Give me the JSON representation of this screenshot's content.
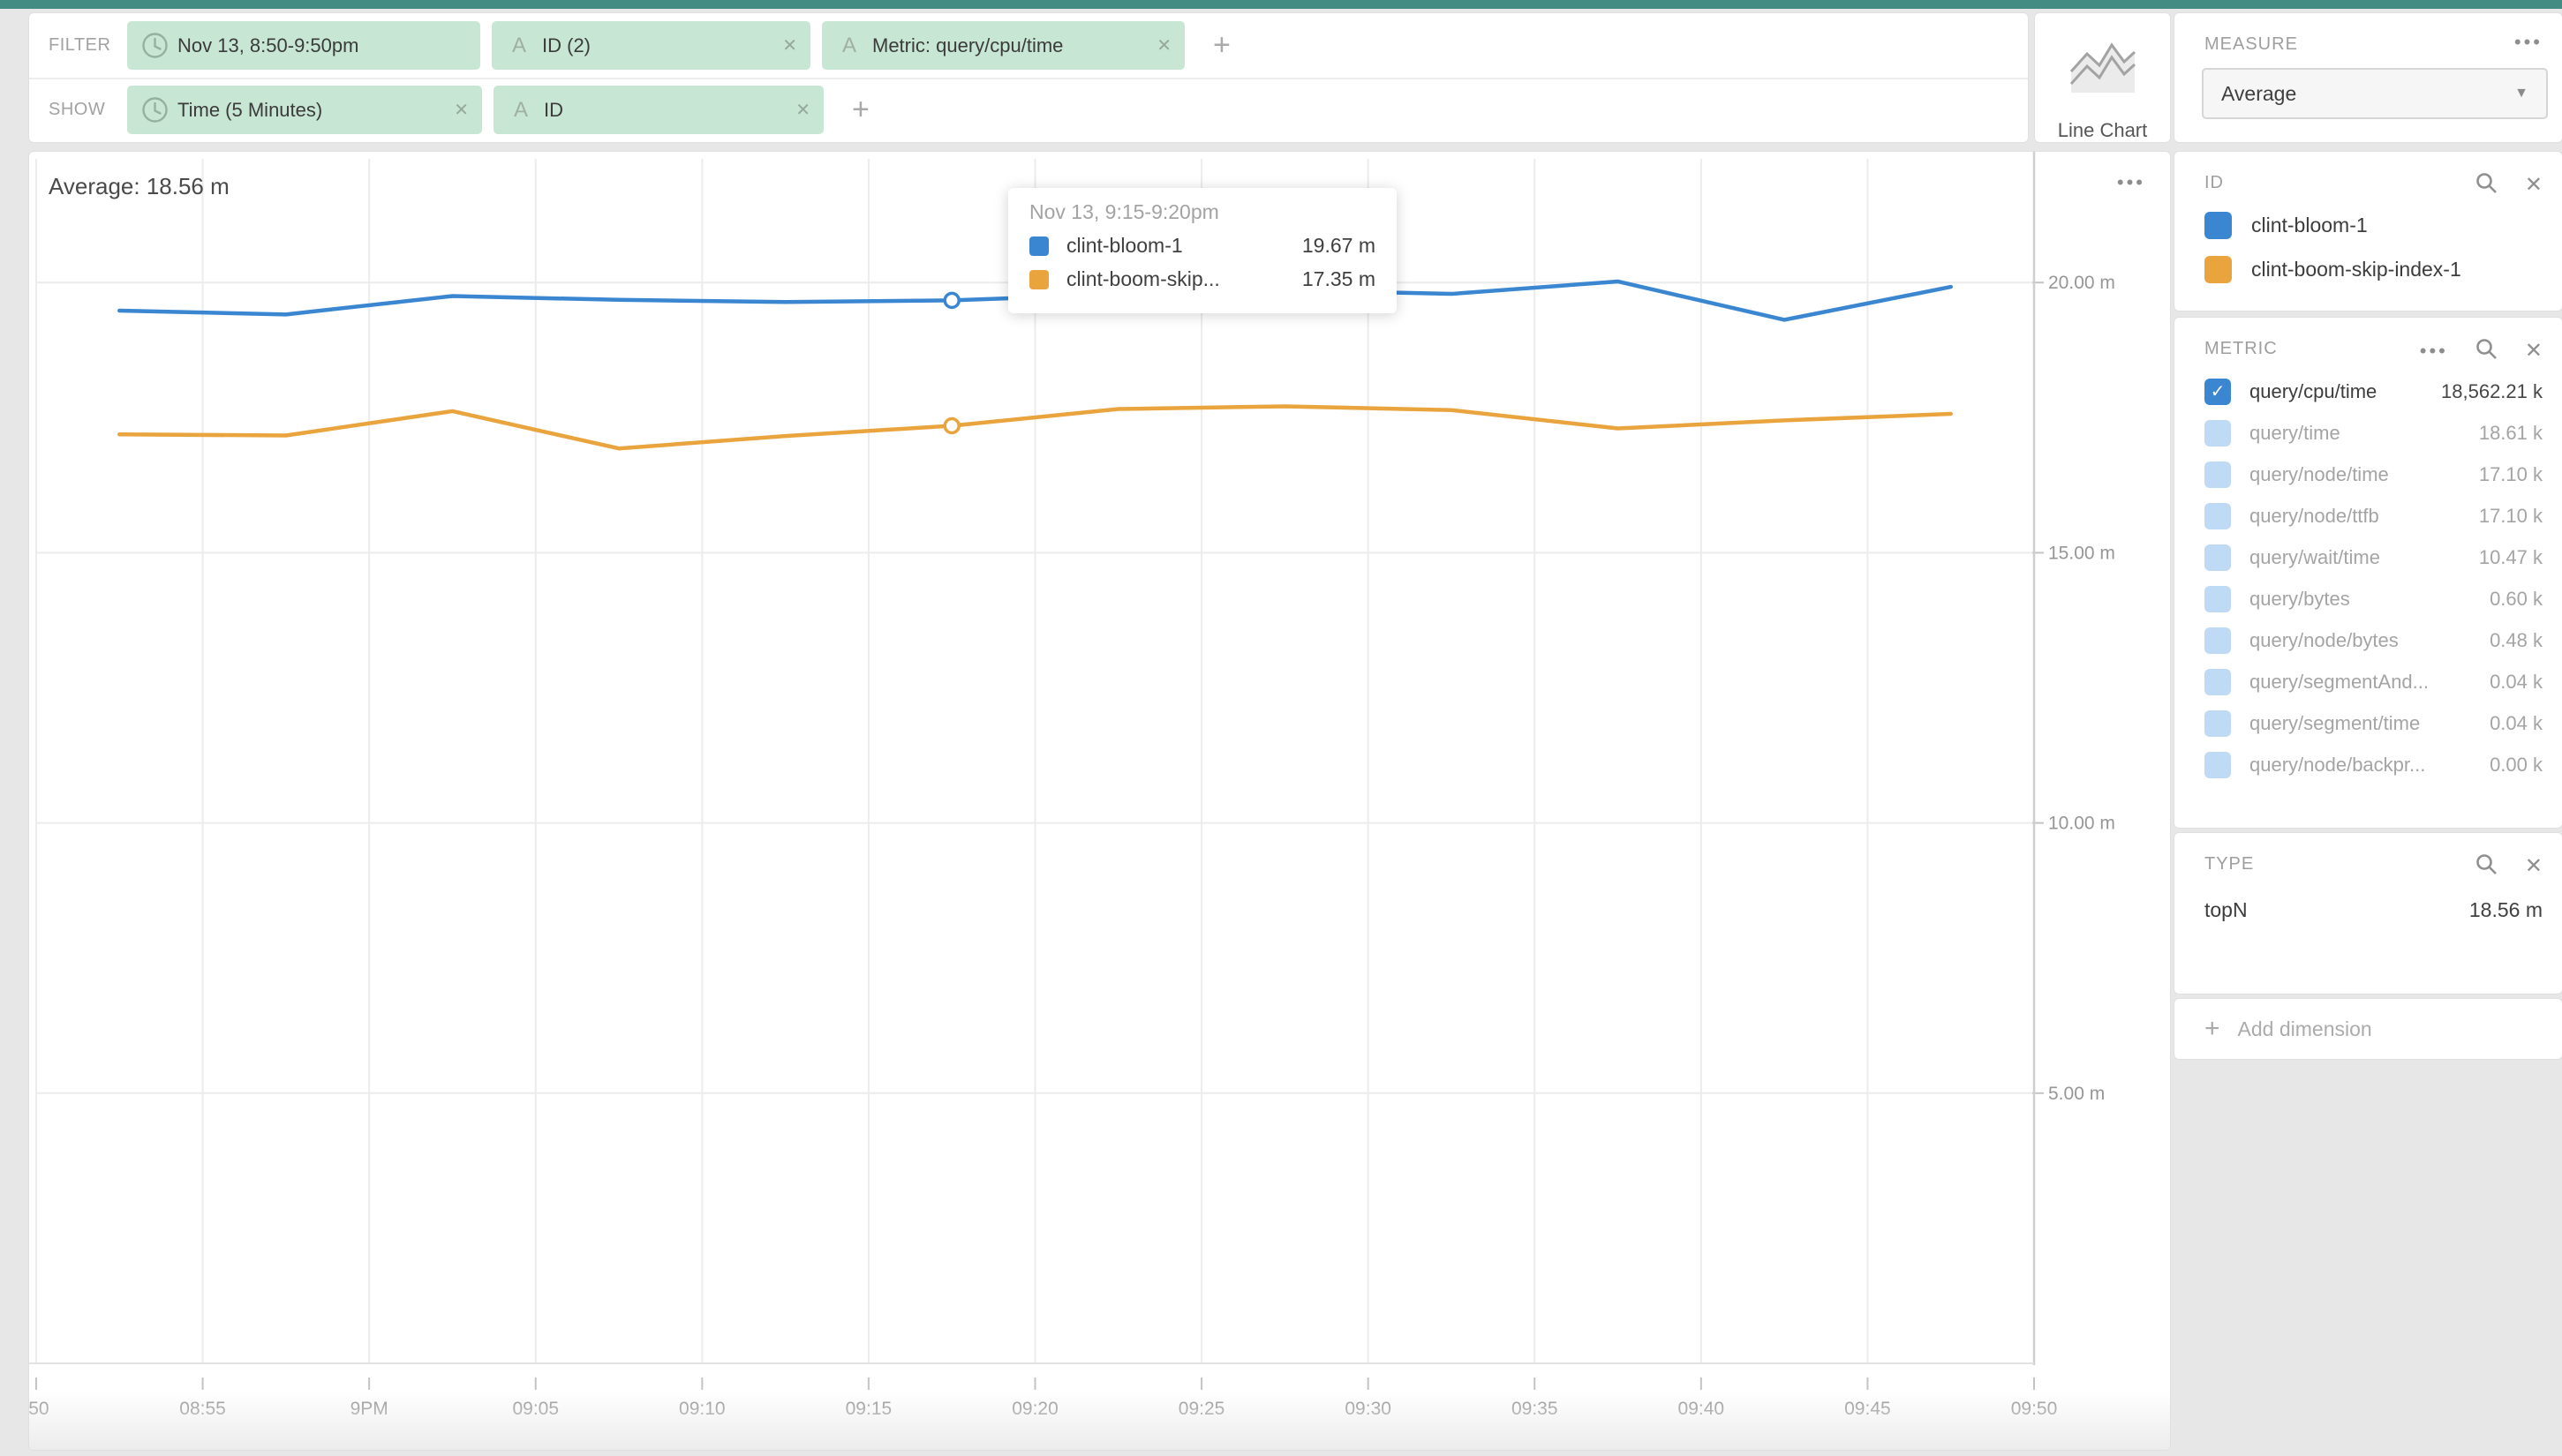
{
  "colors": {
    "top_bar": "#428c84",
    "pill_green": "#c8e6d4",
    "series_blue": "#3a86d1",
    "series_orange": "#e9a43e"
  },
  "filter_bar": {
    "filter_label": "FILTER",
    "show_label": "SHOW",
    "filter_pills": [
      {
        "icon": "clock",
        "label": "Nov 13, 8:50-9:50pm",
        "removable": false
      },
      {
        "icon": "letter-a",
        "label": "ID (2)",
        "removable": true
      },
      {
        "icon": "letter-a",
        "label": "Metric: query/cpu/time",
        "removable": true
      }
    ],
    "show_pills": [
      {
        "icon": "clock",
        "label": "Time (5 Minutes)",
        "removable": true
      },
      {
        "icon": "letter-a",
        "label": "ID",
        "removable": true
      }
    ],
    "add_label": "+"
  },
  "visualization": {
    "type_label": "Line Chart"
  },
  "measure": {
    "title": "MEASURE",
    "selected": "Average",
    "menu_icon": "•••",
    "caret": "▼"
  },
  "sidebar": {
    "id_panel": {
      "title": "ID",
      "items": [
        {
          "label": "clint-bloom-1",
          "color": "#3a86d1"
        },
        {
          "label": "clint-boom-skip-index-1",
          "color": "#e9a43e"
        }
      ]
    },
    "metric_panel": {
      "title": "METRIC",
      "rows": [
        {
          "label": "query/cpu/time",
          "value": "18,562.21 k",
          "checked": true
        },
        {
          "label": "query/time",
          "value": "18.61 k",
          "checked": false
        },
        {
          "label": "query/node/time",
          "value": "17.10 k",
          "checked": false
        },
        {
          "label": "query/node/ttfb",
          "value": "17.10 k",
          "checked": false
        },
        {
          "label": "query/wait/time",
          "value": "10.47 k",
          "checked": false
        },
        {
          "label": "query/bytes",
          "value": "0.60 k",
          "checked": false
        },
        {
          "label": "query/node/bytes",
          "value": "0.48 k",
          "checked": false
        },
        {
          "label": "query/segmentAnd...",
          "value": "0.04 k",
          "checked": false
        },
        {
          "label": "query/segment/time",
          "value": "0.04 k",
          "checked": false
        },
        {
          "label": "query/node/backpr...",
          "value": "0.00 k",
          "checked": false
        }
      ]
    },
    "type_panel": {
      "title": "TYPE",
      "rows": [
        {
          "label": "topN",
          "value": "18.56 m"
        }
      ]
    },
    "add_dimension_label": "Add dimension"
  },
  "chart": {
    "average_label": "Average: 18.56 m",
    "menu_icon": "•••",
    "tooltip": {
      "title": "Nov 13, 9:15-9:20pm",
      "rows": [
        {
          "label": "clint-bloom-1",
          "value": "19.67 m",
          "color": "#3a86d1"
        },
        {
          "label": "clint-boom-skip...",
          "value": "17.35 m",
          "color": "#e9a43e"
        }
      ]
    }
  },
  "chart_data": {
    "type": "line",
    "x_tick_labels": [
      ":50",
      "08:55",
      "9PM",
      "09:05",
      "09:10",
      "09:15",
      "09:20",
      "09:25",
      "09:30",
      "09:35",
      "09:40",
      "09:45",
      "09:50"
    ],
    "categories": [
      "8:50",
      "8:55",
      "9:00",
      "9:05",
      "9:10",
      "9:15",
      "9:20",
      "9:25",
      "9:30",
      "9:35",
      "9:40",
      "9:45"
    ],
    "series": [
      {
        "name": "clint-bloom-1",
        "color": "#3a86d1",
        "values": [
          19.48,
          19.41,
          19.75,
          19.68,
          19.64,
          19.67,
          19.78,
          19.86,
          19.79,
          20.02,
          19.31,
          19.92
        ]
      },
      {
        "name": "clint-boom-skip-index-1",
        "color": "#e9a43e",
        "values": [
          17.19,
          17.17,
          17.62,
          16.93,
          17.16,
          17.35,
          17.66,
          17.71,
          17.64,
          17.3,
          17.45,
          17.57
        ]
      }
    ],
    "y_ticks": [
      {
        "value": 5,
        "label": "5.00 m"
      },
      {
        "value": 10,
        "label": "10.00 m"
      },
      {
        "value": 15,
        "label": "15.00 m"
      },
      {
        "value": 20,
        "label": "20.00 m"
      }
    ],
    "ylim": [
      0,
      22.42
    ],
    "unit": "m",
    "grid": true,
    "legend_position": "none",
    "highlight_index": 5
  }
}
